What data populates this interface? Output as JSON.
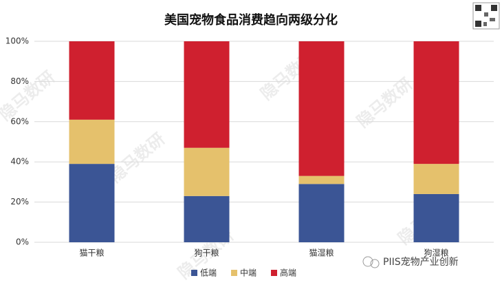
{
  "chart_data": {
    "type": "stacked_bar",
    "title": "美国宠物食品消费趋向两级分化",
    "categories": [
      "猫干粮",
      "狗干粮",
      "猫湿粮",
      "狗湿粮"
    ],
    "series": [
      {
        "name": "低端",
        "color": "#3b5595",
        "values": [
          39,
          23,
          29,
          24
        ]
      },
      {
        "name": "中端",
        "color": "#e5c16c",
        "values": [
          22,
          24,
          4,
          15
        ]
      },
      {
        "name": "高端",
        "color": "#cf202f",
        "values": [
          39,
          53,
          67,
          61
        ]
      }
    ],
    "ylim": [
      0,
      100
    ],
    "yticks": [
      {
        "value": 0,
        "label": "0%"
      },
      {
        "value": 20,
        "label": "20%"
      },
      {
        "value": 40,
        "label": "40%"
      },
      {
        "value": 60,
        "label": "60%"
      },
      {
        "value": 80,
        "label": "80%"
      },
      {
        "value": 100,
        "label": "100%"
      }
    ],
    "grid": true,
    "legend": "bottom"
  },
  "watermark": "隐马数研",
  "footer": "PIIS宠物产业创新"
}
